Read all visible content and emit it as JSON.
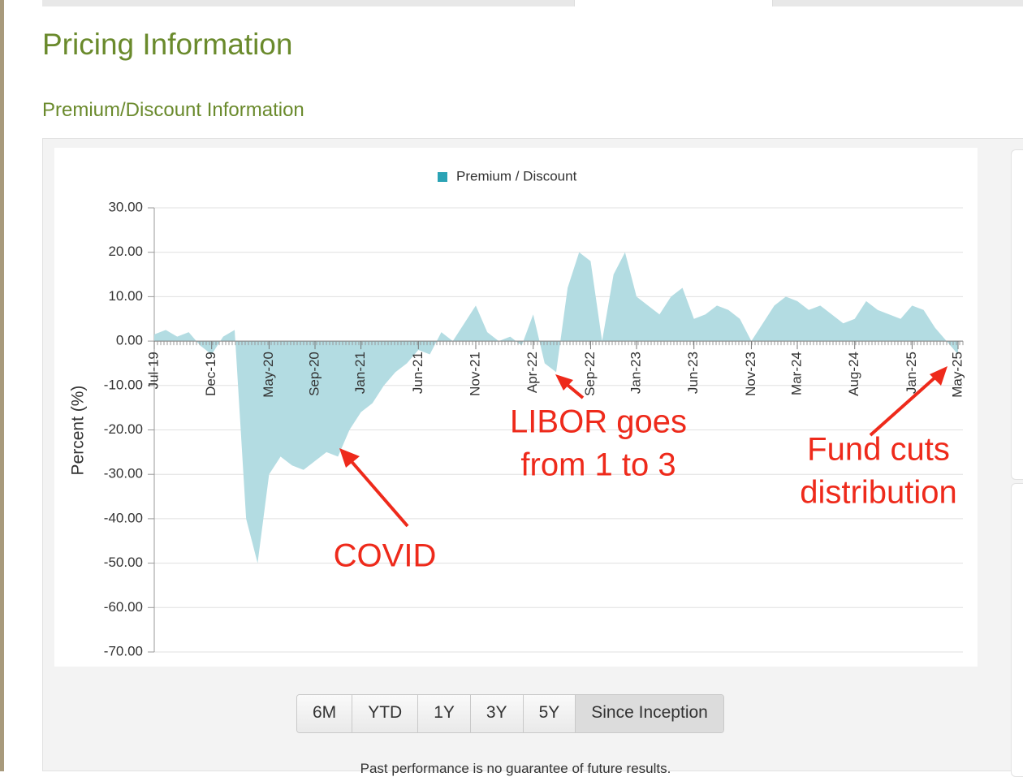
{
  "header": {
    "title": "Pricing Information",
    "subtitle": "Premium/Discount Information"
  },
  "chart_data": {
    "type": "area",
    "legend": "Premium / Discount",
    "ylabel": "Percent (%)",
    "categories": [
      "Jul-19",
      null,
      null,
      null,
      null,
      "Dec-19",
      null,
      null,
      null,
      null,
      "May-20",
      null,
      null,
      null,
      "Sep-20",
      null,
      null,
      null,
      "Jan-21",
      null,
      null,
      null,
      null,
      "Jun-21",
      null,
      null,
      null,
      null,
      "Nov-21",
      null,
      null,
      null,
      null,
      "Apr-22",
      null,
      null,
      null,
      null,
      "Sep-22",
      null,
      null,
      null,
      "Jan-23",
      null,
      null,
      null,
      null,
      "Jun-23",
      null,
      null,
      null,
      null,
      "Nov-23",
      null,
      null,
      null,
      "Mar-24",
      null,
      null,
      null,
      null,
      "Aug-24",
      null,
      null,
      null,
      null,
      "Jan-25",
      null,
      null,
      null,
      "May-25"
    ],
    "series": [
      {
        "name": "Premium / Discount",
        "color": "#b3dce2",
        "values": [
          1.5,
          2.5,
          1,
          2,
          -1,
          -3,
          1,
          2.5,
          -40,
          -50,
          -30,
          -26,
          -28,
          -29,
          -27,
          -25,
          -26,
          -20,
          -16,
          -14,
          -10,
          -7,
          -5,
          -2,
          -3,
          2,
          0,
          4,
          8,
          2,
          0,
          1,
          -1,
          6,
          -5,
          -7,
          12,
          20,
          18,
          0,
          15,
          20,
          10,
          8,
          6,
          10,
          12,
          5,
          6,
          8,
          7,
          5,
          0,
          4,
          8,
          10,
          9,
          7,
          8,
          6,
          4,
          5,
          9,
          7,
          6,
          5,
          8,
          7,
          3,
          0,
          -3
        ]
      }
    ],
    "legend_color": "#2ba3b5",
    "ylim": [
      -70,
      30
    ],
    "yticks": [
      {
        "value": -70,
        "label": "-70.00"
      },
      {
        "value": -60,
        "label": "-60.00"
      },
      {
        "value": -50,
        "label": "-50.00"
      },
      {
        "value": -40,
        "label": "-40.00"
      },
      {
        "value": -30,
        "label": "-30.00"
      },
      {
        "value": -20,
        "label": "-20.00"
      },
      {
        "value": -10,
        "label": "-10.00"
      },
      {
        "value": 0,
        "label": "0.00"
      },
      {
        "value": 10,
        "label": "10.00"
      },
      {
        "value": 20,
        "label": "20.00"
      },
      {
        "value": 30,
        "label": "30.00"
      }
    ],
    "grid": true,
    "annotations": [
      {
        "lines": [
          "COVID"
        ]
      },
      {
        "lines": [
          "LIBOR goes",
          "from 1 to 3"
        ]
      },
      {
        "lines": [
          "Fund cuts",
          "distribution"
        ]
      }
    ]
  },
  "buttons": [
    "6M",
    "YTD",
    "1Y",
    "3Y",
    "5Y",
    "Since Inception"
  ],
  "active_button": 5,
  "footer_note": "Past performance is no guarantee of future results."
}
